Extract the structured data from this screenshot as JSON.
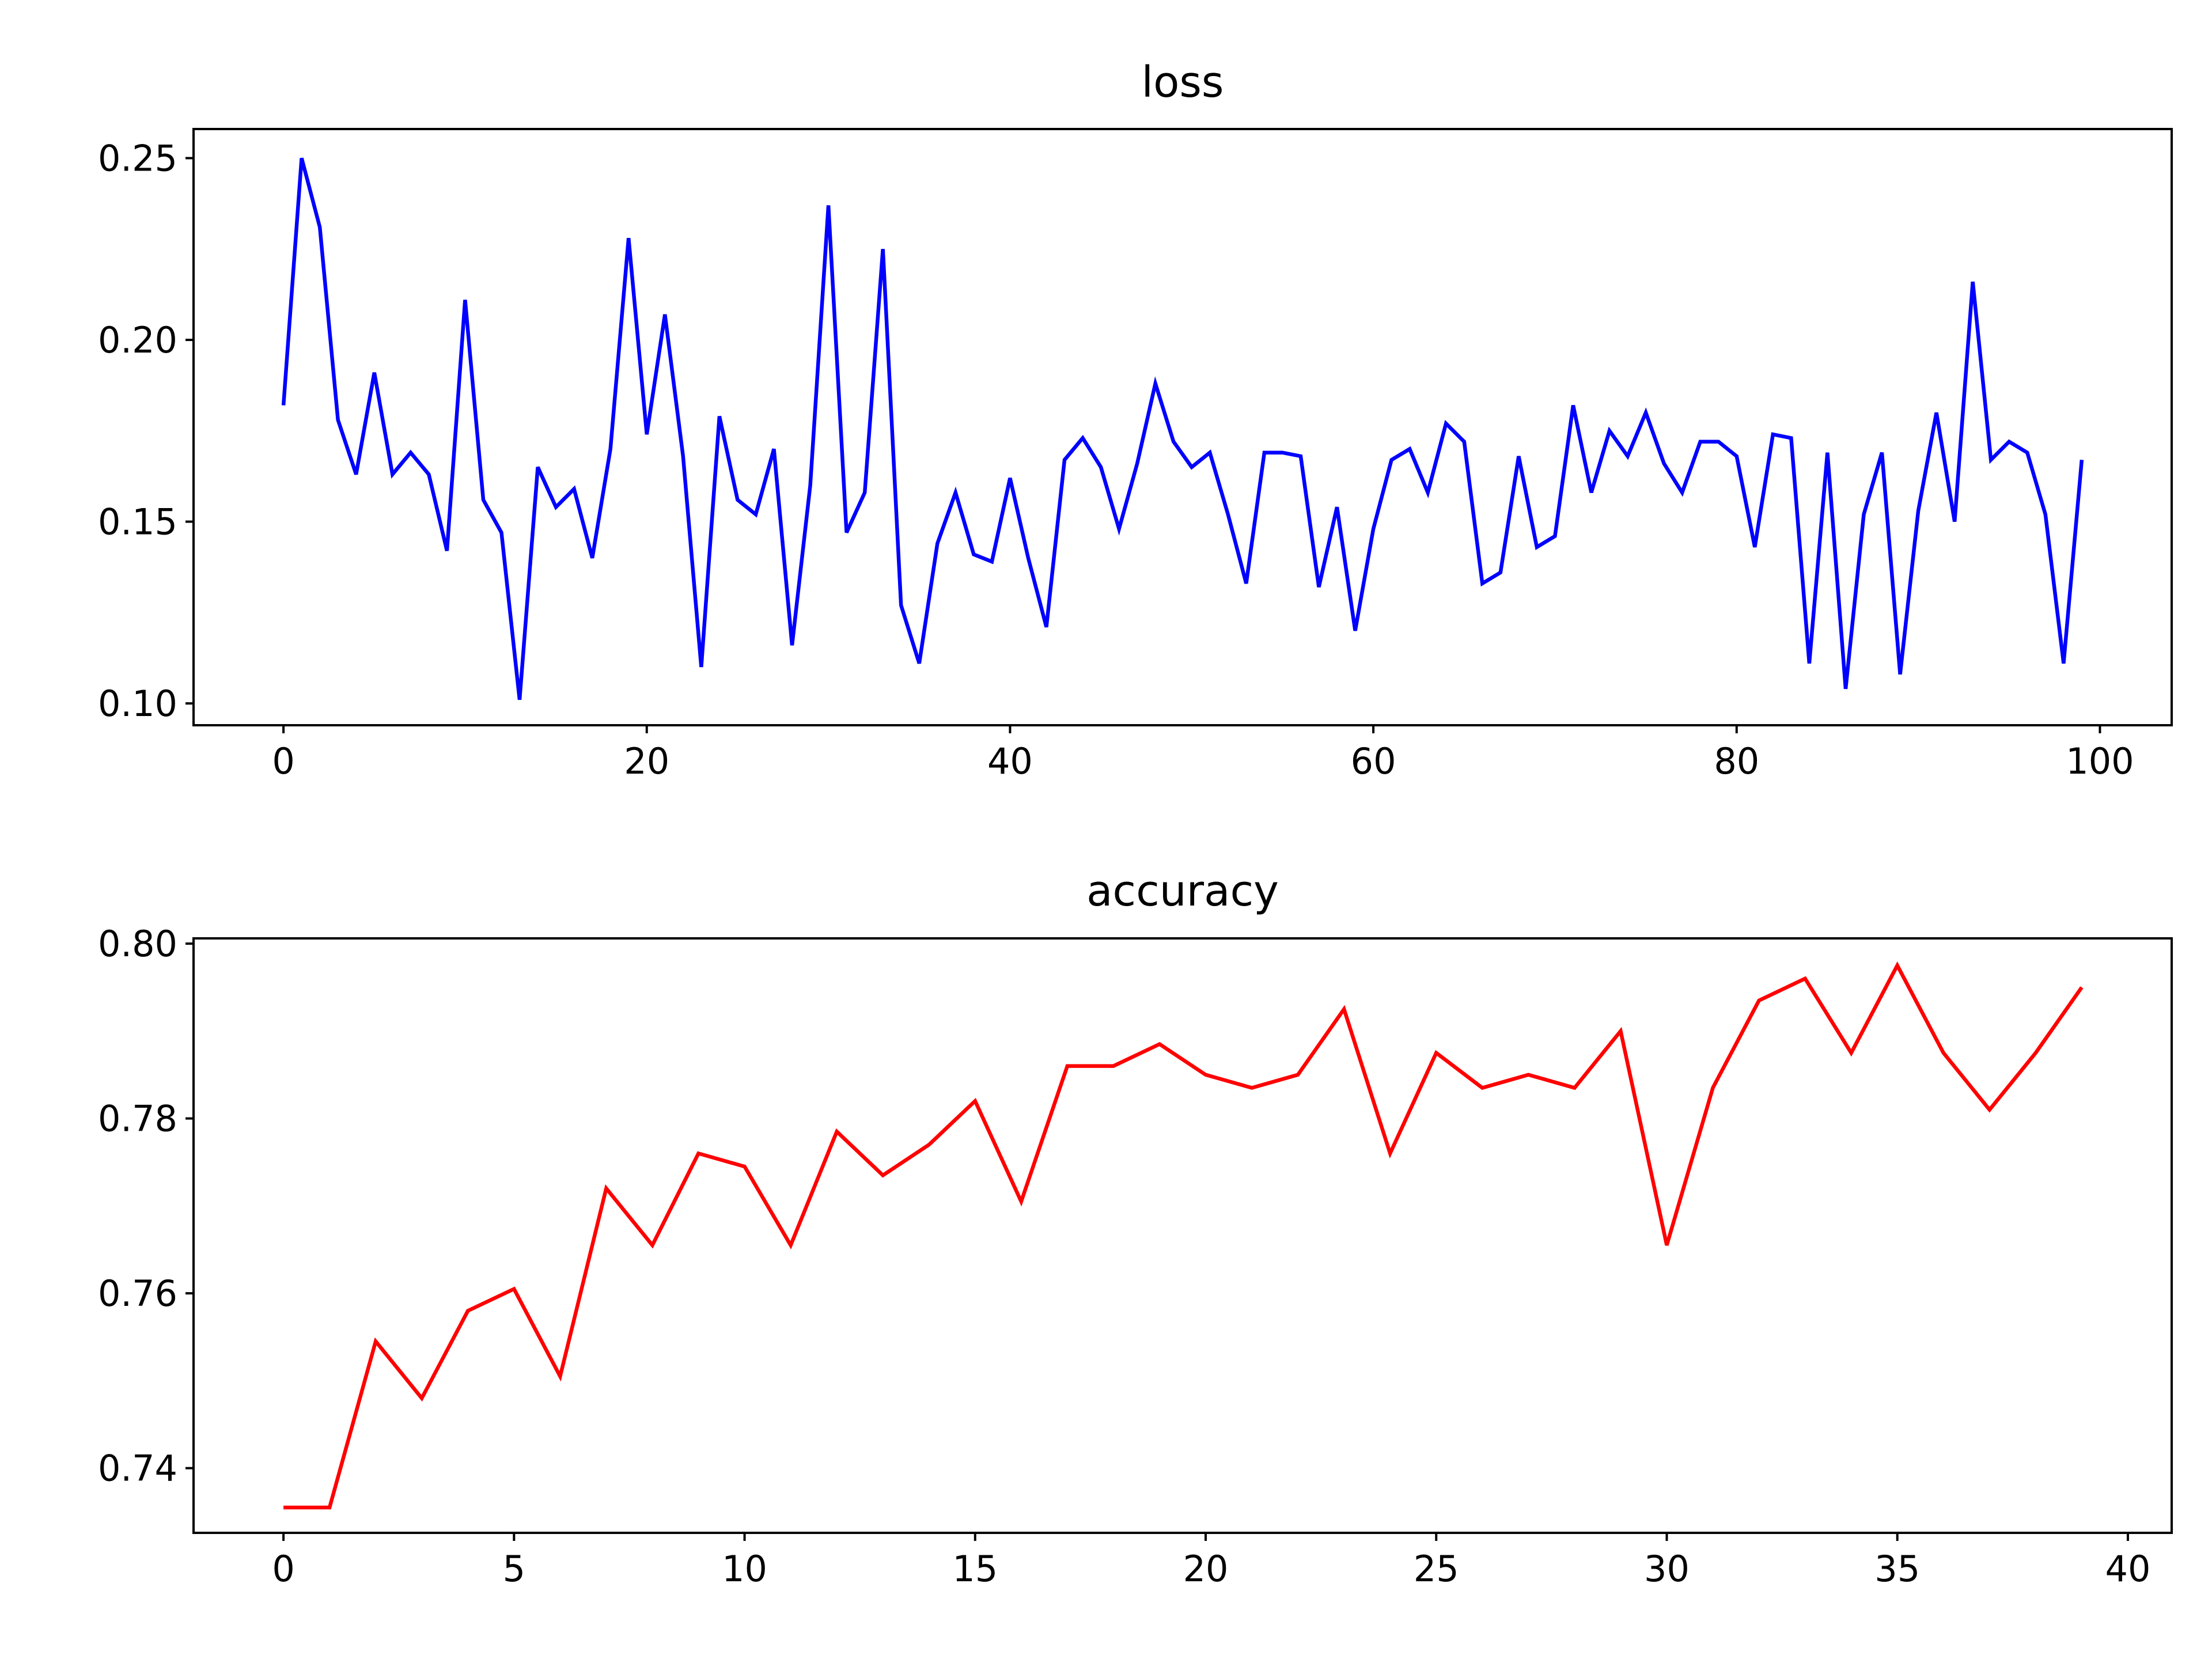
{
  "chart_data": [
    {
      "type": "line",
      "title": "loss",
      "xlabel": "",
      "ylabel": "",
      "xlim": [
        -4.95,
        103.95
      ],
      "ylim": [
        0.094,
        0.258
      ],
      "xticks": [
        0,
        20,
        40,
        60,
        80,
        100
      ],
      "xtick_labels": [
        "0",
        "20",
        "40",
        "60",
        "80",
        "100"
      ],
      "yticks": [
        0.1,
        0.15,
        0.2,
        0.25
      ],
      "ytick_labels": [
        "0.10",
        "0.15",
        "0.20",
        "0.25"
      ],
      "grid": false,
      "color": "#0000ff",
      "x": [
        0,
        1,
        2,
        3,
        4,
        5,
        6,
        7,
        8,
        9,
        10,
        11,
        12,
        13,
        14,
        15,
        16,
        17,
        18,
        19,
        20,
        21,
        22,
        23,
        24,
        25,
        26,
        27,
        28,
        29,
        30,
        31,
        32,
        33,
        34,
        35,
        36,
        37,
        38,
        39,
        40,
        41,
        42,
        43,
        44,
        45,
        46,
        47,
        48,
        49,
        50,
        51,
        52,
        53,
        54,
        55,
        56,
        57,
        58,
        59,
        60,
        61,
        62,
        63,
        64,
        65,
        66,
        67,
        68,
        69,
        70,
        71,
        72,
        73,
        74,
        75,
        76,
        77,
        78,
        79,
        80,
        81,
        82,
        83,
        84,
        85,
        86,
        87,
        88,
        89,
        90,
        91,
        92,
        93,
        94,
        95,
        96,
        97,
        98,
        99
      ],
      "values": [
        0.182,
        0.25,
        0.231,
        0.178,
        0.163,
        0.191,
        0.163,
        0.169,
        0.163,
        0.142,
        0.211,
        0.156,
        0.147,
        0.101,
        0.165,
        0.154,
        0.159,
        0.14,
        0.17,
        0.228,
        0.174,
        0.207,
        0.168,
        0.11,
        0.179,
        0.156,
        0.152,
        0.17,
        0.116,
        0.16,
        0.237,
        0.147,
        0.158,
        0.225,
        0.127,
        0.111,
        0.144,
        0.158,
        0.141,
        0.139,
        0.162,
        0.14,
        0.121,
        0.167,
        0.173,
        0.165,
        0.148,
        0.166,
        0.188,
        0.172,
        0.165,
        0.169,
        0.152,
        0.133,
        0.169,
        0.169,
        0.168,
        0.132,
        0.154,
        0.12,
        0.148,
        0.167,
        0.17,
        0.158,
        0.177,
        0.172,
        0.133,
        0.136,
        0.168,
        0.143,
        0.146,
        0.182,
        0.158,
        0.175,
        0.168,
        0.18,
        0.166,
        0.158,
        0.172,
        0.172,
        0.168,
        0.143,
        0.174,
        0.173,
        0.111,
        0.169,
        0.104,
        0.152,
        0.169,
        0.108,
        0.153,
        0.18,
        0.15,
        0.216,
        0.167,
        0.172,
        0.169,
        0.152,
        0.111,
        0.167
      ]
    },
    {
      "type": "line",
      "title": "accuracy",
      "xlabel": "",
      "ylabel": "",
      "xlim": [
        -1.95,
        40.95
      ],
      "ylim": [
        0.7326,
        0.8006
      ],
      "xticks": [
        0,
        5,
        10,
        15,
        20,
        25,
        30,
        35,
        40
      ],
      "xtick_labels": [
        "0",
        "5",
        "10",
        "15",
        "20",
        "25",
        "30",
        "35",
        "40"
      ],
      "yticks": [
        0.74,
        0.76,
        0.78,
        0.8
      ],
      "ytick_labels": [
        "0.74",
        "0.76",
        "0.78",
        "0.80"
      ],
      "grid": false,
      "color": "#ff0000",
      "x": [
        0,
        1,
        2,
        3,
        4,
        5,
        6,
        7,
        8,
        9,
        10,
        11,
        12,
        13,
        14,
        15,
        16,
        17,
        18,
        19,
        20,
        21,
        22,
        23,
        24,
        25,
        26,
        27,
        28,
        29,
        30,
        31,
        32,
        33,
        34,
        35,
        36,
        37,
        38,
        39
      ],
      "values": [
        0.7355,
        0.7355,
        0.7545,
        0.748,
        0.758,
        0.7605,
        0.7505,
        0.772,
        0.7655,
        0.776,
        0.7745,
        0.7655,
        0.7785,
        0.7735,
        0.777,
        0.782,
        0.7705,
        0.786,
        0.786,
        0.7885,
        0.785,
        0.7835,
        0.785,
        0.7925,
        0.776,
        0.7875,
        0.7835,
        0.785,
        0.7835,
        0.79,
        0.7655,
        0.7835,
        0.7935,
        0.796,
        0.7875,
        0.7975,
        0.7875,
        0.781,
        0.7875,
        0.795
      ]
    }
  ]
}
